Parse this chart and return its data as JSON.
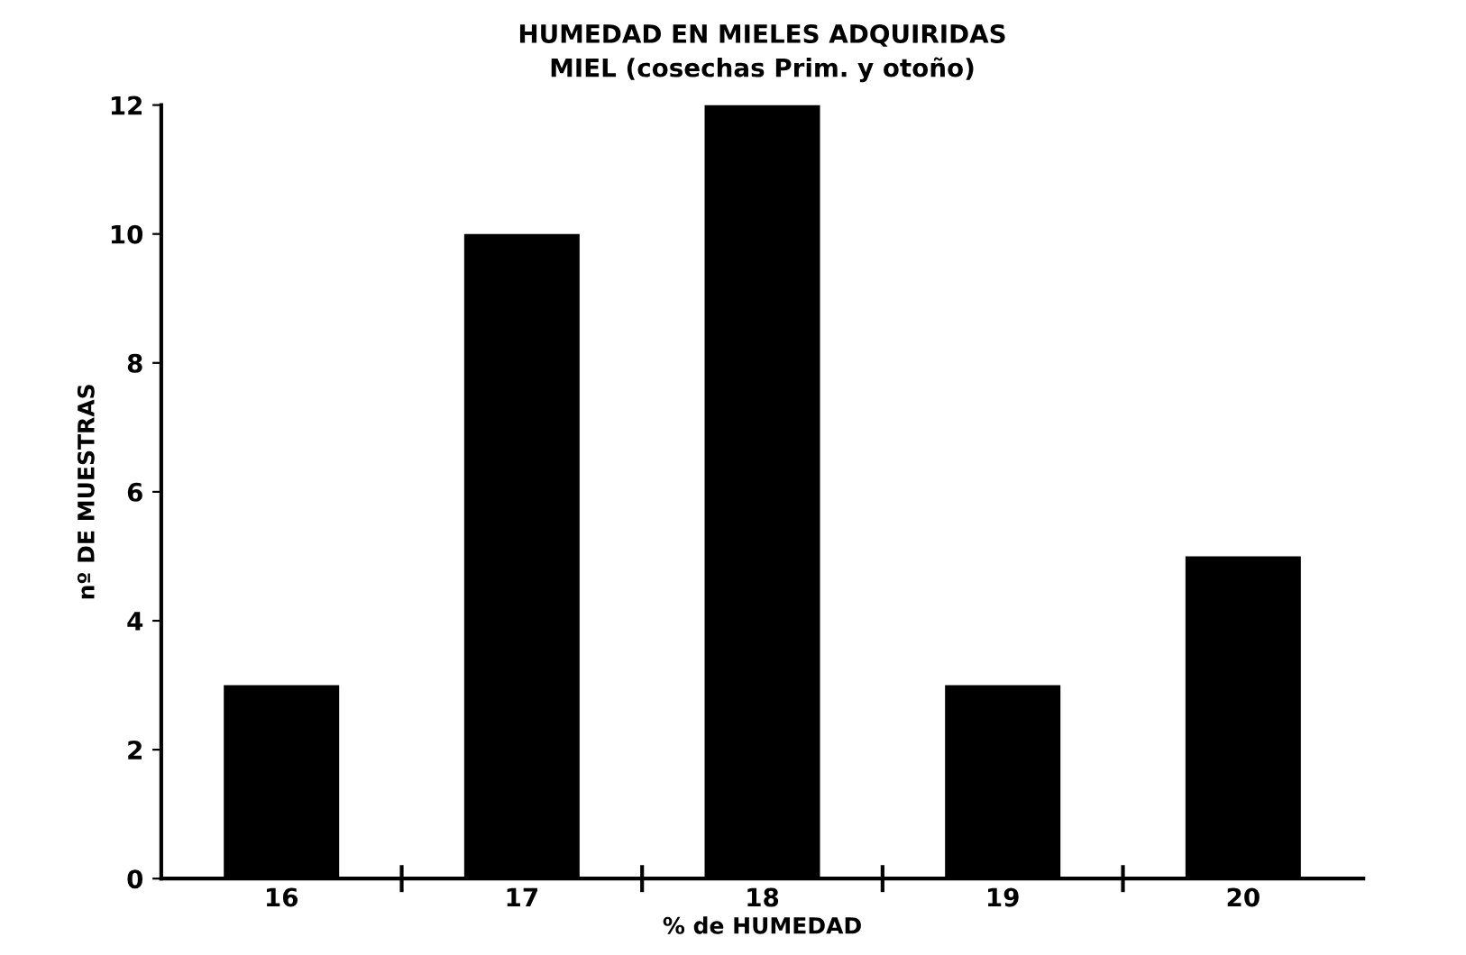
{
  "chart_data": {
    "type": "bar",
    "title": "HUMEDAD EN MIELES ADQUIRIDAS",
    "subtitle": "MIEL (cosechas Prim. y otoño)",
    "xlabel": "% de HUMEDAD",
    "ylabel": "nº DE MUESTRAS",
    "categories": [
      "16",
      "17",
      "18",
      "19",
      "20"
    ],
    "values": [
      3,
      10,
      12,
      3,
      5
    ],
    "color": "#000000",
    "ylim": [
      0,
      12
    ],
    "yticks": [
      0,
      2,
      4,
      6,
      8,
      10,
      12
    ],
    "grid": false,
    "legend": false
  }
}
